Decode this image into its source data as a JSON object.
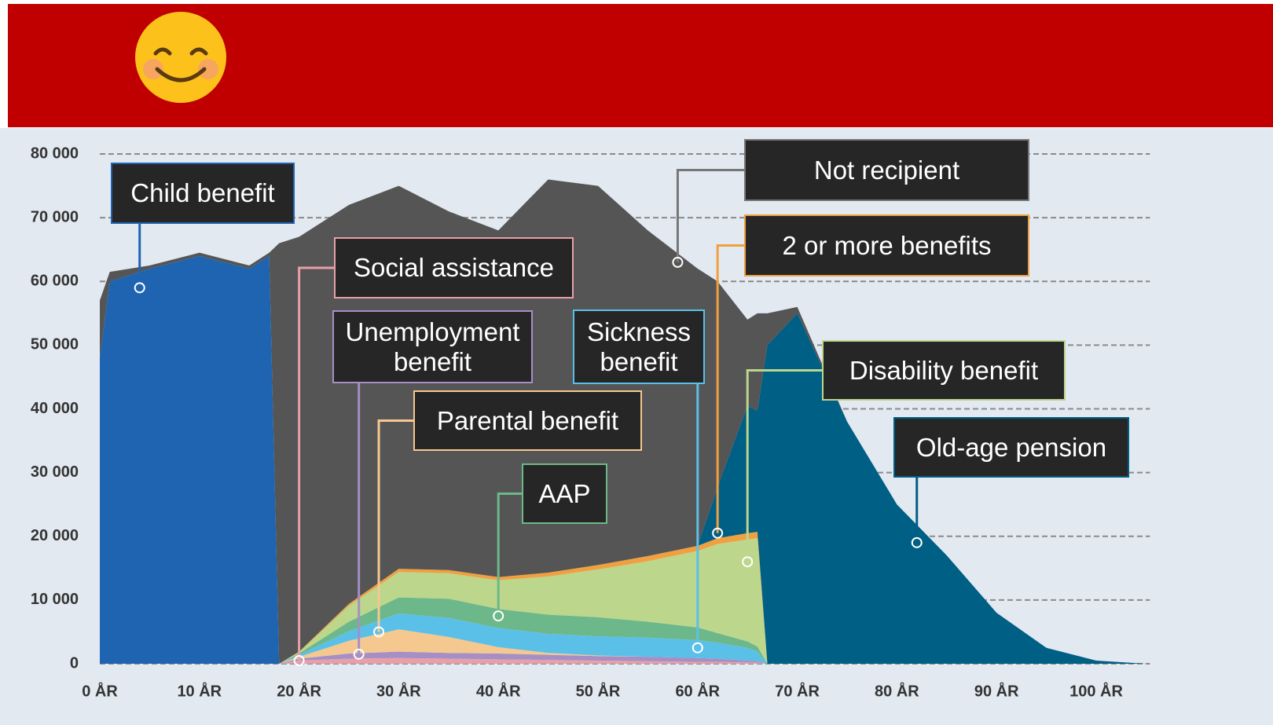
{
  "chart_data": {
    "type": "stacked-area",
    "x": [
      0,
      1,
      5,
      10,
      15,
      17,
      18,
      20,
      25,
      30,
      35,
      40,
      45,
      50,
      55,
      60,
      62,
      65,
      66,
      67,
      70,
      75,
      80,
      85,
      90,
      95,
      100,
      105
    ],
    "xlim": [
      0,
      105
    ],
    "xticks": [
      {
        "value": 0,
        "label": "0 ÅR"
      },
      {
        "value": 10,
        "label": "10 ÅR"
      },
      {
        "value": 20,
        "label": "20 ÅR"
      },
      {
        "value": 30,
        "label": "30 ÅR"
      },
      {
        "value": 40,
        "label": "40 ÅR"
      },
      {
        "value": 50,
        "label": "50 ÅR"
      },
      {
        "value": 60,
        "label": "60 ÅR"
      },
      {
        "value": 70,
        "label": "70 ÅR"
      },
      {
        "value": 80,
        "label": "80 ÅR"
      },
      {
        "value": 90,
        "label": "90 ÅR"
      },
      {
        "value": 100,
        "label": "100 ÅR"
      }
    ],
    "ylim": [
      0,
      80000
    ],
    "yticks": [
      0,
      {
        "value": 10000,
        "label": "10 000"
      },
      {
        "value": 20000,
        "label": "20 000"
      },
      {
        "value": 30000,
        "label": "30 000"
      },
      {
        "value": 40000,
        "label": "40 000"
      },
      {
        "value": 50000,
        "label": "50 000"
      },
      {
        "value": 60000,
        "label": "60 000"
      },
      {
        "value": 70000,
        "label": "70 000"
      },
      {
        "value": 80000,
        "label": "80 000"
      }
    ],
    "grid": true,
    "series": [
      {
        "name": "Social assistance",
        "color": "#e8a0a8",
        "values": [
          0,
          0,
          0,
          0,
          0,
          0,
          0,
          500,
          800,
          900,
          800,
          700,
          600,
          500,
          400,
          300,
          300,
          200,
          200,
          0,
          0,
          0,
          0,
          0,
          0,
          0,
          0,
          0
        ]
      },
      {
        "name": "Unemployment benefit",
        "color": "#a58fc5",
        "values": [
          0,
          0,
          0,
          0,
          0,
          0,
          0,
          300,
          800,
          1000,
          900,
          900,
          800,
          700,
          700,
          600,
          500,
          300,
          200,
          0,
          0,
          0,
          0,
          0,
          0,
          0,
          0,
          0
        ]
      },
      {
        "name": "Parental benefit",
        "color": "#f5c890",
        "values": [
          0,
          0,
          0,
          0,
          0,
          0,
          0,
          300,
          2000,
          3500,
          2500,
          1000,
          300,
          100,
          0,
          0,
          0,
          0,
          0,
          0,
          0,
          0,
          0,
          0,
          0,
          0,
          0,
          0
        ]
      },
      {
        "name": "Sickness benefit",
        "color": "#5bc0e8",
        "values": [
          0,
          0,
          0,
          0,
          0,
          0,
          0,
          300,
          1500,
          2500,
          3000,
          3000,
          3000,
          3000,
          3000,
          2800,
          2500,
          2000,
          1500,
          0,
          0,
          0,
          0,
          0,
          0,
          0,
          0,
          0
        ]
      },
      {
        "name": "AAP",
        "color": "#6db88a",
        "values": [
          0,
          0,
          0,
          0,
          0,
          0,
          0,
          200,
          1500,
          2500,
          3000,
          3000,
          3000,
          3000,
          2500,
          2000,
          1500,
          1000,
          800,
          0,
          0,
          0,
          0,
          0,
          0,
          0,
          0,
          0
        ]
      },
      {
        "name": "Disability benefit",
        "color": "#bcd68c",
        "values": [
          0,
          0,
          0,
          0,
          0,
          0,
          0,
          200,
          2500,
          4000,
          4000,
          4500,
          6000,
          7500,
          9500,
          12000,
          14000,
          16000,
          17000,
          0,
          0,
          0,
          0,
          0,
          0,
          0,
          0,
          0
        ]
      },
      {
        "name": "2 or more benefits",
        "color": "#f0a040",
        "values": [
          0,
          0,
          0,
          0,
          0,
          0,
          0,
          100,
          300,
          500,
          500,
          500,
          600,
          700,
          800,
          800,
          900,
          1000,
          1000,
          0,
          0,
          0,
          0,
          0,
          0,
          0,
          0,
          0
        ]
      },
      {
        "name": "Child benefit",
        "color": "#1f64b0",
        "values": [
          48000,
          60000,
          62000,
          64000,
          62000,
          64000,
          0,
          0,
          0,
          0,
          0,
          0,
          0,
          0,
          0,
          0,
          0,
          0,
          0,
          0,
          0,
          0,
          0,
          0,
          0,
          0,
          0,
          0
        ]
      },
      {
        "name": "Old-age pension",
        "color": "#005f85",
        "values": [
          0,
          0,
          0,
          0,
          0,
          0,
          0,
          0,
          0,
          0,
          0,
          0,
          0,
          0,
          0,
          0,
          8000,
          20000,
          19000,
          50000,
          55000,
          38000,
          25000,
          17000,
          8000,
          2500,
          500,
          0
        ]
      },
      {
        "name": "Not recipient",
        "color": "#555555",
        "values": [
          9000,
          1500,
          500,
          500,
          500,
          500,
          66000,
          65100,
          62600,
          60100,
          56300,
          54400,
          61700,
          59500,
          51100,
          43500,
          32300,
          13500,
          15300,
          5000,
          1000,
          0,
          0,
          0,
          0,
          0,
          0,
          0
        ]
      }
    ]
  }
}
